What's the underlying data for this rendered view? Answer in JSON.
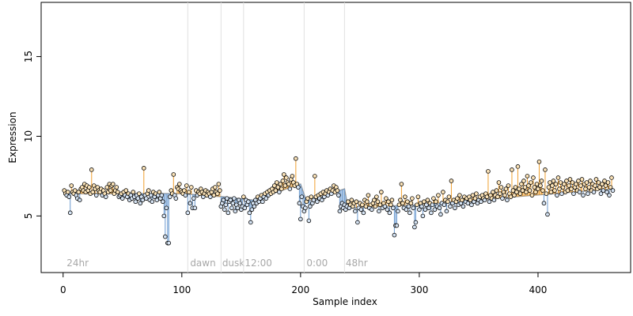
{
  "chart_data": {
    "type": "scatter",
    "xlabel": "Sample index",
    "ylabel": "Expression",
    "xlim": [
      -18.5,
      478
    ],
    "ylim": [
      1.45,
      18.4
    ],
    "xticks": [
      0,
      100,
      200,
      300,
      400
    ],
    "yticks": [
      5,
      10,
      15
    ],
    "above_color": "#f0a030",
    "below_color": "#6a9ad0",
    "fit_color": "#9a9a9a",
    "point_stroke": "#000000",
    "fit": {
      "x": [
        1,
        100,
        135,
        160,
        200,
        205,
        237,
        240,
        300,
        380,
        463
      ],
      "y": [
        6.4,
        6.4,
        6.2,
        6.0,
        7.0,
        5.9,
        6.7,
        5.5,
        5.7,
        6.2,
        6.7
      ]
    },
    "markers": [
      {
        "x": 3,
        "line": null,
        "label": "24hr"
      },
      {
        "x": 107,
        "line": 105,
        "label": "dawn"
      },
      {
        "x": 134,
        "line": 133,
        "label": "dusk"
      },
      {
        "x": 153,
        "line": 152,
        "label": "12:00"
      },
      {
        "x": 205,
        "line": 203,
        "label": "0:00"
      },
      {
        "x": 238,
        "line": 237,
        "label": "48hr"
      }
    ],
    "values": [
      6.6,
      6.4,
      6.3,
      6.5,
      6.2,
      5.2,
      6.9,
      6.5,
      6.4,
      6.6,
      6.3,
      6.1,
      6.5,
      6.0,
      6.7,
      6.8,
      6.6,
      7.0,
      6.5,
      6.9,
      6.6,
      6.8,
      6.4,
      7.9,
      6.5,
      6.9,
      6.7,
      6.3,
      6.8,
      6.6,
      6.5,
      6.7,
      6.3,
      6.6,
      6.4,
      6.2,
      6.8,
      6.5,
      7.0,
      6.6,
      6.9,
      7.0,
      6.4,
      6.6,
      6.8,
      6.5,
      6.2,
      6.3,
      6.4,
      6.1,
      6.5,
      6.3,
      6.6,
      6.2,
      6.4,
      6.0,
      6.3,
      6.1,
      6.5,
      6.2,
      5.9,
      6.3,
      6.1,
      6.4,
      5.8,
      6.2,
      6.0,
      8.0,
      6.3,
      6.1,
      6.4,
      6.6,
      6.0,
      6.3,
      5.9,
      6.5,
      6.2,
      6.4,
      6.0,
      6.3,
      6.5,
      6.1,
      6.3,
      5.9,
      5.0,
      3.7,
      5.5,
      3.3,
      3.3,
      6.2,
      6.6,
      6.4,
      7.6,
      6.3,
      6.1,
      6.8,
      6.7,
      7.0,
      6.6,
      6.5,
      6.4,
      6.6,
      6.3,
      6.9,
      5.2,
      6.5,
      5.8,
      6.8,
      5.5,
      6.1,
      5.5,
      6.6,
      6.3,
      6.5,
      6.4,
      6.7,
      6.5,
      6.2,
      6.4,
      6.6,
      6.3,
      6.5,
      6.4,
      6.2,
      6.5,
      6.7,
      6.3,
      6.8,
      6.5,
      6.4,
      7.0,
      6.6,
      5.6,
      5.8,
      6.0,
      5.4,
      5.7,
      6.1,
      5.2,
      5.9,
      6.0,
      5.5,
      5.8,
      6.1,
      5.3,
      5.7,
      5.5,
      6.0,
      5.8,
      5.4,
      5.6,
      6.2,
      5.5,
      6.0,
      5.7,
      5.9,
      5.2,
      4.6,
      5.4,
      5.8,
      5.6,
      6.0,
      5.8,
      6.2,
      5.9,
      6.1,
      6.3,
      5.9,
      6.2,
      6.4,
      6.1,
      6.5,
      6.3,
      6.6,
      6.4,
      6.7,
      6.5,
      6.9,
      6.6,
      7.1,
      6.8,
      6.5,
      7.0,
      6.7,
      7.2,
      7.6,
      6.9,
      7.4,
      7.1,
      7.0,
      6.7,
      7.3,
      7.5,
      7.1,
      6.9,
      8.6,
      7.0,
      6.8,
      5.8,
      4.8,
      6.2,
      5.6,
      5.3,
      5.5,
      5.9,
      6.1,
      4.7,
      5.6,
      6.2,
      5.8,
      6.0,
      7.5,
      6.2,
      5.9,
      6.3,
      6.1,
      6.4,
      6.0,
      6.5,
      6.2,
      6.4,
      6.6,
      6.3,
      6.5,
      6.7,
      6.4,
      6.6,
      6.9,
      6.5,
      6.8,
      6.6,
      6.3,
      5.3,
      5.6,
      5.8,
      5.5,
      5.7,
      5.4,
      5.6,
      5.9,
      5.5,
      5.7,
      6.0,
      5.6,
      5.8,
      5.3,
      5.9,
      4.6,
      5.5,
      5.8,
      5.4,
      5.7,
      5.2,
      6.0,
      5.6,
      5.9,
      6.3,
      5.5,
      5.7,
      5.4,
      5.8,
      6.0,
      5.6,
      6.2,
      5.9,
      5.3,
      5.7,
      6.5,
      5.5,
      5.8,
      5.6,
      6.1,
      5.4,
      5.9,
      5.2,
      5.7,
      6.0,
      5.5,
      3.8,
      4.4,
      4.4,
      5.3,
      5.7,
      6.0,
      7.0,
      5.8,
      5.5,
      6.2,
      5.4,
      5.9,
      5.6,
      5.2,
      5.8,
      6.1,
      5.5,
      4.3,
      4.6,
      5.7,
      6.2,
      5.4,
      5.8,
      5.6,
      5.0,
      5.9,
      5.4,
      5.7,
      6.0,
      5.5,
      5.8,
      5.2,
      5.7,
      6.1,
      5.4,
      5.9,
      5.6,
      6.3,
      5.5,
      5.1,
      5.8,
      6.5,
      5.7,
      6.0,
      5.3,
      5.9,
      6.2,
      5.6,
      7.2,
      5.8,
      6.0,
      5.5,
      5.9,
      6.1,
      5.7,
      6.3,
      5.8,
      6.0,
      5.6,
      6.2,
      5.9,
      6.1,
      5.8,
      6.2,
      6.0,
      5.7,
      6.3,
      5.9,
      6.1,
      6.4,
      5.8,
      6.0,
      6.2,
      5.9,
      6.3,
      6.1,
      6.0,
      6.4,
      6.2,
      7.8,
      5.9,
      6.3,
      6.1,
      6.5,
      6.0,
      6.3,
      6.6,
      6.2,
      7.1,
      6.4,
      6.8,
      6.1,
      6.5,
      6.3,
      6.7,
      6.0,
      6.9,
      6.4,
      6.2,
      7.9,
      6.6,
      6.3,
      6.8,
      6.5,
      8.1,
      6.7,
      6.4,
      7.0,
      6.6,
      7.2,
      6.8,
      6.5,
      7.5,
      6.9,
      6.6,
      7.1,
      6.3,
      7.4,
      6.8,
      6.5,
      7.0,
      6.7,
      8.4,
      6.9,
      7.2,
      6.6,
      5.8,
      7.9,
      6.4,
      5.1,
      6.8,
      7.1,
      6.5,
      6.9,
      7.2,
      6.6,
      7.0,
      6.3,
      7.4,
      6.7,
      7.1,
      6.4,
      6.8,
      7.0,
      6.5,
      7.2,
      6.6,
      6.9,
      7.3,
      6.7,
      7.1,
      6.4,
      6.8,
      7.0,
      6.6,
      7.2,
      6.5,
      6.9,
      7.3,
      6.3,
      7.0,
      6.7,
      7.1,
      6.4,
      6.8,
      7.2,
      6.6,
      7.0,
      6.5,
      6.9,
      7.3,
      6.7,
      7.1,
      6.8,
      6.4,
      7.0,
      6.6,
      7.2,
      6.9,
      6.5,
      7.1,
      6.3,
      6.8,
      7.4,
      6.6
    ]
  }
}
